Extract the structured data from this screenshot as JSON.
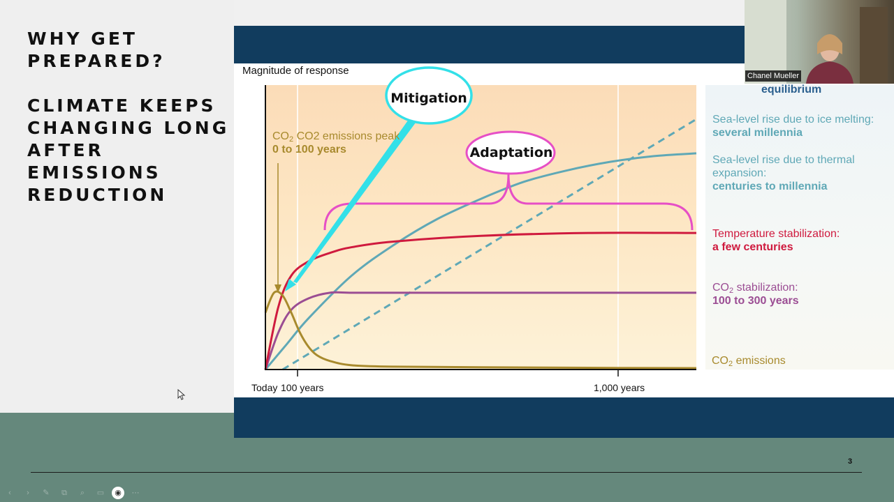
{
  "slide": {
    "heading_1": "WHY GET\nPREPARED?",
    "heading_2": "CLIMATE KEEPS\nCHANGING LONG\nAFTER\nEMISSIONS\nREDUCTION",
    "page_number": "3"
  },
  "video": {
    "participant_name": "Chanel Mueller"
  },
  "toolbar": {
    "buttons": [
      {
        "name": "prev-slide-icon",
        "glyph": "‹"
      },
      {
        "name": "next-slide-icon",
        "glyph": "›"
      },
      {
        "name": "pen-icon",
        "glyph": "✎"
      },
      {
        "name": "copy-icon",
        "glyph": "⧉"
      },
      {
        "name": "zoom-icon",
        "glyph": "⌕"
      },
      {
        "name": "screen-icon",
        "glyph": "▭"
      },
      {
        "name": "camera-icon",
        "glyph": "◉"
      },
      {
        "name": "more-icon",
        "glyph": "⋯"
      }
    ]
  },
  "chart_data": {
    "type": "line",
    "ylabel": "Magnitude of response",
    "x_ticks": [
      "Today",
      "100 years",
      "1,000 years"
    ],
    "x_domain": "time, non-linear scale from Today to beyond 1,000 years",
    "series": [
      {
        "name": "CO2 emissions",
        "color": "#a88a2d",
        "dash": false,
        "x": [
          0,
          0.02,
          0.04,
          0.06,
          0.08,
          0.1,
          0.12,
          0.15,
          0.2,
          0.3,
          0.5,
          0.75,
          1.0
        ],
        "y": [
          0.2,
          0.27,
          0.26,
          0.2,
          0.13,
          0.08,
          0.05,
          0.03,
          0.015,
          0.01,
          0.008,
          0.006,
          0.005
        ]
      },
      {
        "name": "CO2 stabilization: 100 to 300 years",
        "color": "#9b4d93",
        "dash": false,
        "x": [
          0,
          0.03,
          0.06,
          0.1,
          0.15,
          0.2,
          0.3,
          0.5,
          0.75,
          1.0
        ],
        "y": [
          0,
          0.13,
          0.21,
          0.25,
          0.27,
          0.27,
          0.27,
          0.27,
          0.27,
          0.27
        ]
      },
      {
        "name": "Temperature stabilization: a few centuries",
        "color": "#cf1a3e",
        "dash": false,
        "x": [
          0,
          0.03,
          0.06,
          0.1,
          0.15,
          0.2,
          0.3,
          0.5,
          0.75,
          1.0
        ],
        "y": [
          0,
          0.22,
          0.33,
          0.38,
          0.41,
          0.43,
          0.45,
          0.47,
          0.48,
          0.48
        ]
      },
      {
        "name": "Sea-level rise due to thermal expansion: centuries to millennia",
        "color": "#5fa8b6",
        "dash": false,
        "x": [
          0,
          0.05,
          0.1,
          0.2,
          0.3,
          0.4,
          0.5,
          0.6,
          0.7,
          0.8,
          0.9,
          1.0
        ],
        "y": [
          0,
          0.09,
          0.18,
          0.33,
          0.44,
          0.53,
          0.6,
          0.66,
          0.7,
          0.73,
          0.75,
          0.76
        ]
      },
      {
        "name": "Sea-level rise due to ice melting: several millennia",
        "color": "#5fa8b6",
        "dash": true,
        "x": [
          0.04,
          1.0
        ],
        "y": [
          0,
          0.88
        ]
      }
    ],
    "annotations": {
      "emissions_peak": "CO2 emissions peak",
      "emissions_peak_time": "0 to 100 years",
      "mitigation": "Mitigation",
      "adaptation": "Adaptation",
      "equilibrium_label": "equilibrium"
    },
    "labels": {
      "ice_title": "Sea-level rise due to ice melting:",
      "ice_time": "several millennia",
      "thermal_title_1": "Sea-level rise due to thermal",
      "thermal_title_2": "expansion:",
      "thermal_time": "centuries to millennia",
      "temp_title": "Temperature stabilization:",
      "temp_time": "a few centuries",
      "co2stab_title": "stabilization:",
      "co2stab_time": "100 to 300 years",
      "co2_emissions": "emissions",
      "co2_prefix": "CO",
      "co2_sub": "2"
    },
    "colors": {
      "ice": "#5fa8b6",
      "thermal": "#5fa8b6",
      "temperature": "#cf1a3e",
      "co2_stabilization": "#9b4d93",
      "co2_emissions": "#a88a2d",
      "mitigation": "#33e0e8",
      "adaptation": "#e64fc6"
    }
  }
}
